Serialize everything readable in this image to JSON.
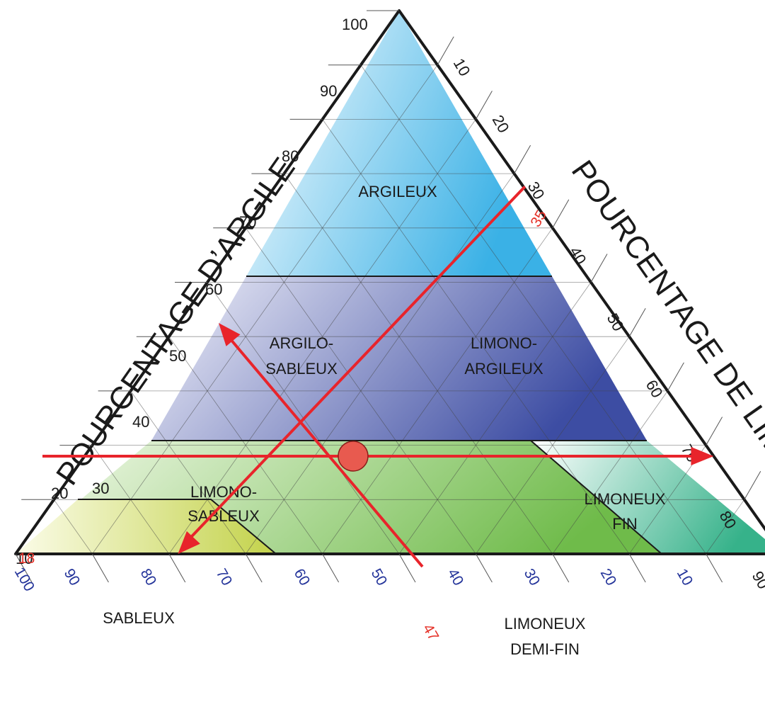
{
  "axes": {
    "clay_title": "POURCENTAGE D’ARGILE",
    "silt_title": "POURCENTAGE DE LIMON",
    "clay_ticks": [
      "10",
      "20",
      "30",
      "40",
      "50",
      "60",
      "70",
      "80",
      "90",
      "100"
    ],
    "silt_ticks": [
      "10",
      "20",
      "30",
      "40",
      "50",
      "60",
      "70",
      "80",
      "90"
    ],
    "sand_ticks": [
      "100",
      "90",
      "80",
      "70",
      "60",
      "50",
      "40",
      "30",
      "20",
      "10"
    ]
  },
  "zones": {
    "argileux": "ARGILEUX",
    "argilo_sableux_1": "ARGILO-",
    "argilo_sableux_2": "SABLEUX",
    "limono_argileux_1": "LIMONO-",
    "limono_argileux_2": "ARGILEUX",
    "limono_sableux_1": "LIMONO-",
    "limono_sableux_2": "SABLEUX",
    "limoneux_fin_1": "LIMONEUX",
    "limoneux_fin_2": "FIN",
    "sableux": "SABLEUX",
    "limoneux_demi_fin_1": "LIMONEUX",
    "limoneux_demi_fin_2": "DEMI-FIN"
  },
  "sample": {
    "clay_label": "18",
    "silt_label": "35",
    "sand_label": "47",
    "clay": 18,
    "silt": 35,
    "sand": 47
  },
  "colors": {
    "argileux": "#3ab1e6",
    "argilo_limoneux": "#3d4da3",
    "limoneux_vert": "#72bd4c",
    "sableux": "#c3d24a",
    "limoneux_fin": "#36b28a",
    "arrow": "#e8242b",
    "marker": "#e85a4f"
  }
}
